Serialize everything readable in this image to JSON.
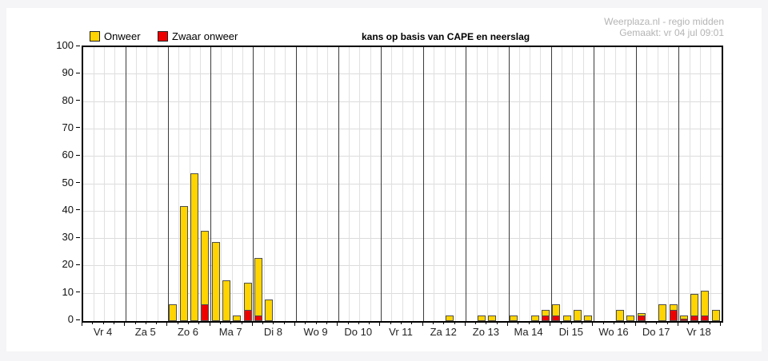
{
  "watermark": {
    "line1": "Weerplaza.nl - regio midden",
    "line2": "Gemaakt: vr 04 jul 09:01"
  },
  "chart_data": {
    "type": "bar",
    "title": "kans op basis van CAPE en neerslag",
    "ylabel": "",
    "xlabel": "",
    "ylim": [
      0,
      100
    ],
    "y_ticks": [
      0,
      10,
      20,
      30,
      40,
      50,
      60,
      70,
      80,
      90,
      100
    ],
    "grid": true,
    "bars_per_day": 4,
    "legend": [
      {
        "label": "Onweer",
        "color": "#ffd400"
      },
      {
        "label": "Zwaar onweer",
        "color": "#ee0000"
      }
    ],
    "colors": {
      "onweer": "#ffd400",
      "zwaar_onweer": "#ee0000",
      "bar_border": "#4f4f4f",
      "day_line": "#3c3c3c",
      "minor_line": "#e0e0e0",
      "hgrid_line": "#dcdcdc"
    },
    "days": [
      {
        "label": "Vr 4",
        "bars": [
          {
            "total": 0,
            "severe": 0
          },
          {
            "total": 0,
            "severe": 0
          },
          {
            "total": 0,
            "severe": 0
          },
          {
            "total": 0,
            "severe": 0
          }
        ]
      },
      {
        "label": "Za 5",
        "bars": [
          {
            "total": 0,
            "severe": 0
          },
          {
            "total": 0,
            "severe": 0
          },
          {
            "total": 0,
            "severe": 0
          },
          {
            "total": 0,
            "severe": 0
          }
        ]
      },
      {
        "label": "Zo 6",
        "bars": [
          {
            "total": 6,
            "severe": 0
          },
          {
            "total": 42,
            "severe": 0
          },
          {
            "total": 54,
            "severe": 0
          },
          {
            "total": 33,
            "severe": 6
          }
        ]
      },
      {
        "label": "Ma 7",
        "bars": [
          {
            "total": 29,
            "severe": 0
          },
          {
            "total": 15,
            "severe": 0
          },
          {
            "total": 2,
            "severe": 0
          },
          {
            "total": 14,
            "severe": 4
          }
        ]
      },
      {
        "label": "Di 8",
        "bars": [
          {
            "total": 23,
            "severe": 2
          },
          {
            "total": 8,
            "severe": 0
          },
          {
            "total": 0,
            "severe": 0
          },
          {
            "total": 0,
            "severe": 0
          }
        ]
      },
      {
        "label": "Wo 9",
        "bars": [
          {
            "total": 0,
            "severe": 0
          },
          {
            "total": 0,
            "severe": 0
          },
          {
            "total": 0,
            "severe": 0
          },
          {
            "total": 0,
            "severe": 0
          }
        ]
      },
      {
        "label": "Do 10",
        "bars": [
          {
            "total": 0,
            "severe": 0
          },
          {
            "total": 0,
            "severe": 0
          },
          {
            "total": 0,
            "severe": 0
          },
          {
            "total": 0,
            "severe": 0
          }
        ]
      },
      {
        "label": "Vr 11",
        "bars": [
          {
            "total": 0,
            "severe": 0
          },
          {
            "total": 0,
            "severe": 0
          },
          {
            "total": 0,
            "severe": 0
          },
          {
            "total": 0,
            "severe": 0
          }
        ]
      },
      {
        "label": "Za 12",
        "bars": [
          {
            "total": 0,
            "severe": 0
          },
          {
            "total": 0,
            "severe": 0
          },
          {
            "total": 2,
            "severe": 0
          },
          {
            "total": 0,
            "severe": 0
          }
        ]
      },
      {
        "label": "Zo 13",
        "bars": [
          {
            "total": 0,
            "severe": 0
          },
          {
            "total": 2,
            "severe": 0
          },
          {
            "total": 2,
            "severe": 0
          },
          {
            "total": 0,
            "severe": 0
          }
        ]
      },
      {
        "label": "Ma 14",
        "bars": [
          {
            "total": 2,
            "severe": 0
          },
          {
            "total": 0,
            "severe": 0
          },
          {
            "total": 2,
            "severe": 0
          },
          {
            "total": 4,
            "severe": 2
          }
        ]
      },
      {
        "label": "Di 15",
        "bars": [
          {
            "total": 6,
            "severe": 2
          },
          {
            "total": 2,
            "severe": 0
          },
          {
            "total": 4,
            "severe": 0
          },
          {
            "total": 2,
            "severe": 0
          }
        ]
      },
      {
        "label": "Wo 16",
        "bars": [
          {
            "total": 0,
            "severe": 0
          },
          {
            "total": 0,
            "severe": 0
          },
          {
            "total": 4,
            "severe": 0
          },
          {
            "total": 2,
            "severe": 0
          }
        ]
      },
      {
        "label": "Do 17",
        "bars": [
          {
            "total": 3,
            "severe": 2
          },
          {
            "total": 0,
            "severe": 0
          },
          {
            "total": 6,
            "severe": 0
          },
          {
            "total": 6,
            "severe": 4
          }
        ]
      },
      {
        "label": "Vr 18",
        "bars": [
          {
            "total": 2,
            "severe": 1
          },
          {
            "total": 10,
            "severe": 2
          },
          {
            "total": 11,
            "severe": 2
          },
          {
            "total": 4,
            "severe": 0
          }
        ]
      }
    ]
  }
}
